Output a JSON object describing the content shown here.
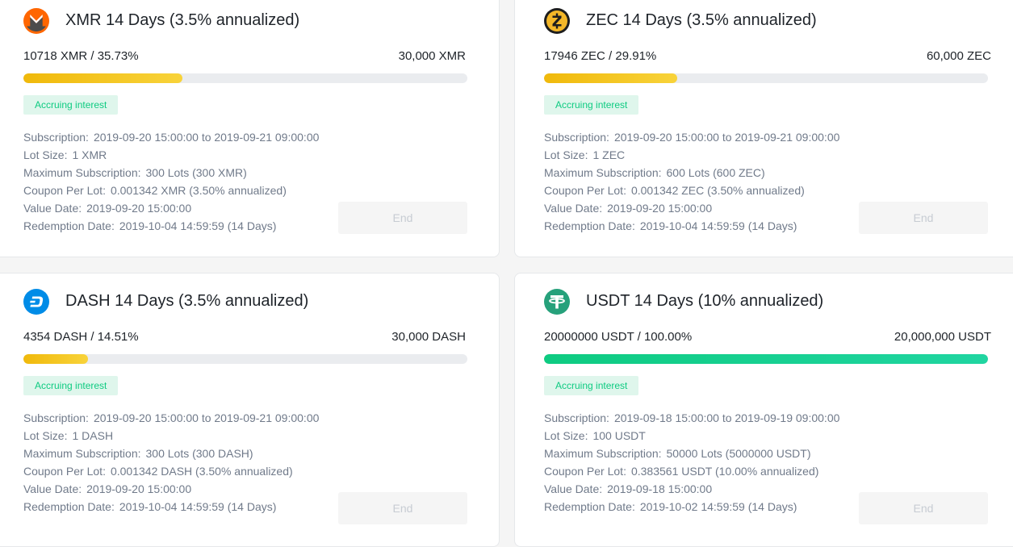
{
  "cards": [
    {
      "coin": "XMR",
      "icon": "monero-icon",
      "title": "XMR 14 Days (3.5% annualized)",
      "amount": "10718 XMR / 35.73%",
      "total": "30,000 XMR",
      "progress_percent": 35.73,
      "status": "Accruing interest",
      "details": [
        {
          "label": "Subscription:",
          "value": "2019-09-20 15:00:00 to 2019-09-21 09:00:00"
        },
        {
          "label": "Lot Size:",
          "value": "1 XMR"
        },
        {
          "label": "Maximum Subscription:",
          "value": "300 Lots (300 XMR)"
        },
        {
          "label": "Coupon Per Lot:",
          "value": "0.001342 XMR (3.50% annualized)"
        },
        {
          "label": "Value Date:",
          "value": "2019-09-20 15:00:00"
        },
        {
          "label": "Redemption Date:",
          "value": "2019-10-04 14:59:59 (14 Days)"
        }
      ],
      "button_label": "End"
    },
    {
      "coin": "ZEC",
      "icon": "zcash-icon",
      "title": "ZEC 14 Days (3.5% annualized)",
      "amount": "17946 ZEC / 29.91%",
      "total": "60,000 ZEC",
      "progress_percent": 29.91,
      "status": "Accruing interest",
      "details": [
        {
          "label": "Subscription:",
          "value": "2019-09-20 15:00:00 to 2019-09-21 09:00:00"
        },
        {
          "label": "Lot Size:",
          "value": "1 ZEC"
        },
        {
          "label": "Maximum Subscription:",
          "value": "600 Lots (600 ZEC)"
        },
        {
          "label": "Coupon Per Lot:",
          "value": "0.001342 ZEC (3.50% annualized)"
        },
        {
          "label": "Value Date:",
          "value": "2019-09-20 15:00:00"
        },
        {
          "label": "Redemption Date:",
          "value": "2019-10-04 14:59:59 (14 Days)"
        }
      ],
      "button_label": "End"
    },
    {
      "coin": "DASH",
      "icon": "dash-icon",
      "title": "DASH 14 Days (3.5% annualized)",
      "amount": "4354 DASH / 14.51%",
      "total": "30,000 DASH",
      "progress_percent": 14.51,
      "status": "Accruing interest",
      "details": [
        {
          "label": "Subscription:",
          "value": "2019-09-20 15:00:00 to 2019-09-21 09:00:00"
        },
        {
          "label": "Lot Size:",
          "value": "1 DASH"
        },
        {
          "label": "Maximum Subscription:",
          "value": "300 Lots (300 DASH)"
        },
        {
          "label": "Coupon Per Lot:",
          "value": "0.001342 DASH (3.50% annualized)"
        },
        {
          "label": "Value Date:",
          "value": "2019-09-20 15:00:00"
        },
        {
          "label": "Redemption Date:",
          "value": "2019-10-04 14:59:59 (14 Days)"
        }
      ],
      "button_label": "End"
    },
    {
      "coin": "USDT",
      "icon": "tether-icon",
      "title": "USDT 14 Days (10% annualized)",
      "amount": "20000000 USDT / 100.00%",
      "total": "20,000,000 USDT",
      "progress_percent": 100,
      "status": "Accruing interest",
      "details": [
        {
          "label": "Subscription:",
          "value": "2019-09-18 15:00:00 to 2019-09-19 09:00:00"
        },
        {
          "label": "Lot Size:",
          "value": "100 USDT"
        },
        {
          "label": "Maximum Subscription:",
          "value": "50000 Lots (5000000 USDT)"
        },
        {
          "label": "Coupon Per Lot:",
          "value": "0.383561 USDT (10.00% annualized)"
        },
        {
          "label": "Value Date:",
          "value": "2019-09-18 15:00:00"
        },
        {
          "label": "Redemption Date:",
          "value": "2019-10-02 14:59:59 (14 Days)"
        }
      ],
      "button_label": "End"
    }
  ],
  "colors": {
    "progress_gold": "#f0b90b",
    "progress_green": "#0ecb81",
    "badge_text": "#0ecb81",
    "badge_bg": "#dff6ec",
    "label_text": "#707a8a",
    "monero_orange": "#ff6600",
    "zcash_gold": "#f4b728",
    "dash_blue": "#008ce7",
    "tether_green": "#26a17b"
  }
}
